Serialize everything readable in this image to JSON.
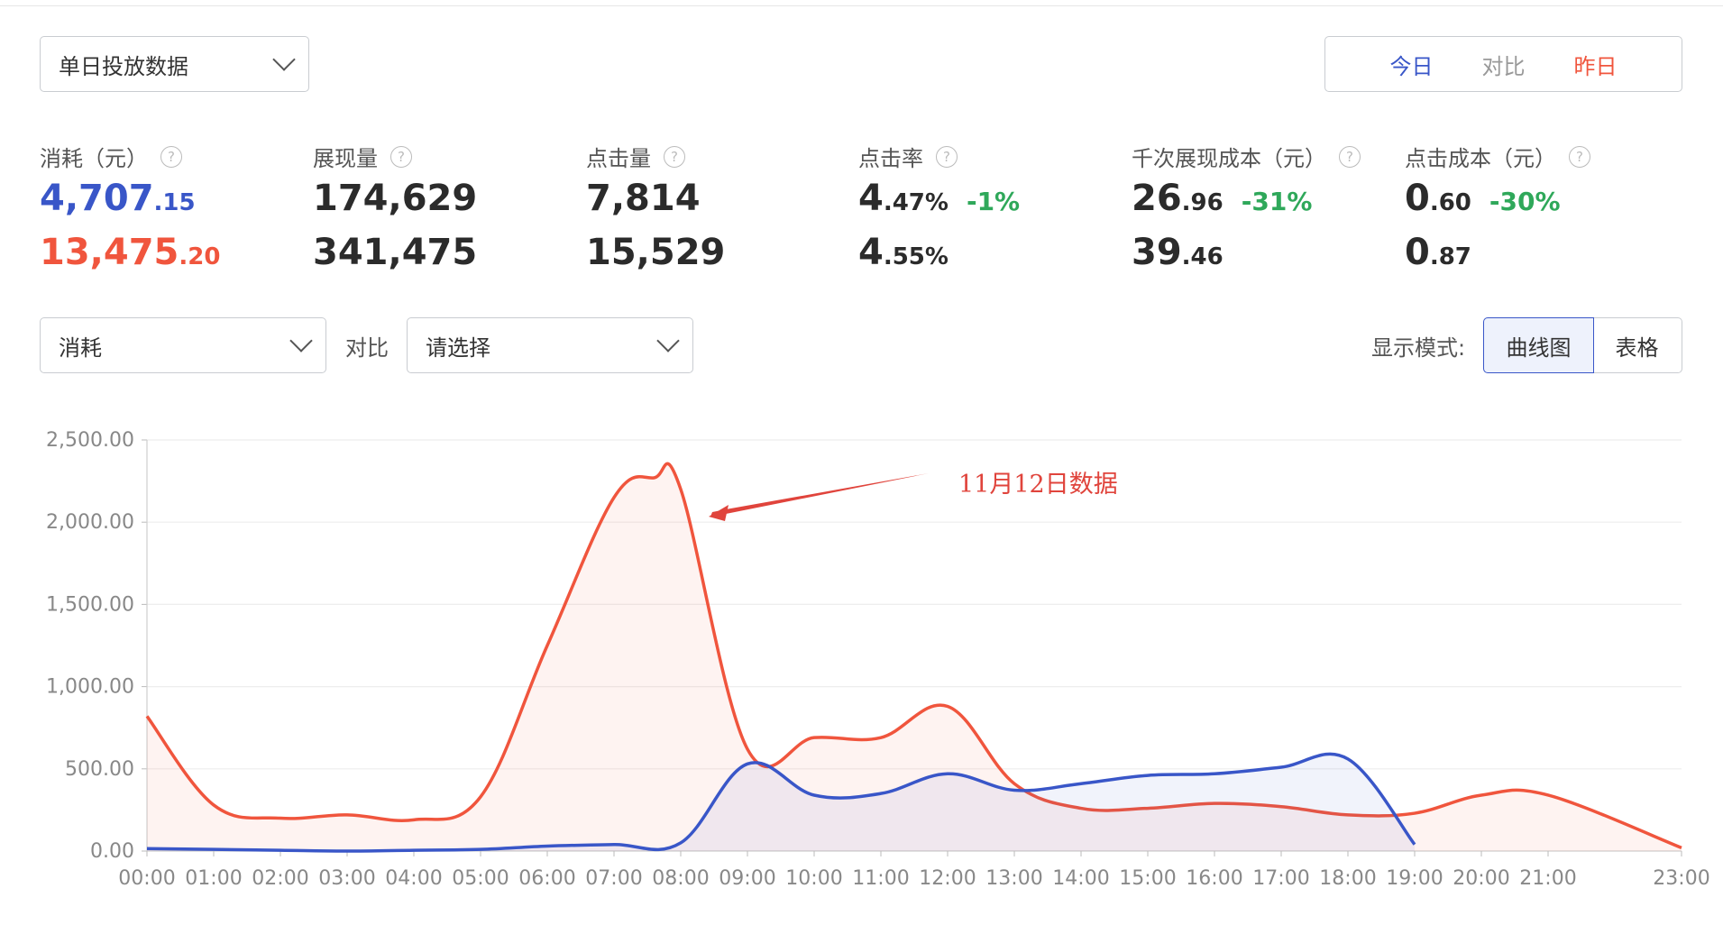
{
  "top_select": {
    "value": "单日投放数据"
  },
  "day_toggle": {
    "today": "今日",
    "compare": "对比",
    "yesterday": "昨日"
  },
  "metrics": [
    {
      "label": "消耗（元）",
      "help": "?",
      "today_int": "4,707",
      "today_dec": ".15",
      "yest_int": "13,475",
      "yest_dec": ".20",
      "delta": ""
    },
    {
      "label": "展现量",
      "help": "?",
      "today_int": "174,629",
      "today_dec": "",
      "yest_int": "341,475",
      "yest_dec": "",
      "delta": ""
    },
    {
      "label": "点击量",
      "help": "?",
      "today_int": "7,814",
      "today_dec": "",
      "yest_int": "15,529",
      "yest_dec": "",
      "delta": ""
    },
    {
      "label": "点击率",
      "help": "?",
      "today_int": "4",
      "today_dec": ".47%",
      "yest_int": "4",
      "yest_dec": ".55%",
      "delta": "-1%"
    },
    {
      "label": "千次展现成本（元）",
      "help": "?",
      "today_int": "26",
      "today_dec": ".96",
      "yest_int": "39",
      "yest_dec": ".46",
      "delta": "-31%"
    },
    {
      "label": "点击成本（元）",
      "help": "?",
      "today_int": "0",
      "today_dec": ".60",
      "yest_int": "0",
      "yest_dec": ".87",
      "delta": "-30%"
    }
  ],
  "filters": {
    "metric_select": "消耗",
    "compare_label": "对比",
    "compare_select_placeholder": "请选择",
    "display_mode_label": "显示模式:",
    "mode_curve": "曲线图",
    "mode_table": "表格"
  },
  "colors": {
    "today": "#3956c8",
    "yesterday": "#f0553d",
    "delta_down": "#2fa85a"
  },
  "chart_data": {
    "type": "line",
    "x": [
      "00:00",
      "01:00",
      "02:00",
      "03:00",
      "04:00",
      "05:00",
      "06:00",
      "07:00",
      "08:00",
      "09:00",
      "10:00",
      "11:00",
      "12:00",
      "13:00",
      "14:00",
      "15:00",
      "16:00",
      "17:00",
      "18:00",
      "19:00",
      "20:00",
      "21:00",
      "23:00"
    ],
    "x_hours": [
      0,
      1,
      2,
      3,
      4,
      5,
      6,
      7,
      8,
      9,
      10,
      11,
      12,
      13,
      14,
      15,
      16,
      17,
      18,
      19,
      20,
      21,
      23
    ],
    "y_ticks": [
      "0.00",
      "500.00",
      "1,000.00",
      "1,500.00",
      "2,000.00",
      "2,500.00"
    ],
    "ylim": [
      0,
      2500
    ],
    "grid": true,
    "series": [
      {
        "color": "#f0553d",
        "x": [
          0,
          1,
          2,
          3,
          4,
          5,
          6,
          7,
          7.6,
          8,
          9,
          10,
          11,
          12,
          13,
          14,
          15,
          16,
          17,
          18,
          19,
          20,
          21,
          23
        ],
        "values": [
          820,
          280,
          200,
          220,
          190,
          330,
          1250,
          2150,
          2270,
          2200,
          620,
          690,
          690,
          880,
          410,
          260,
          260,
          290,
          270,
          220,
          230,
          340,
          340,
          20
        ]
      },
      {
        "color": "#3956c8",
        "x": [
          0,
          1,
          2,
          3,
          4,
          5,
          6,
          7,
          8,
          9,
          10,
          11,
          12,
          13,
          14,
          15,
          16,
          17,
          18,
          19
        ],
        "values": [
          15,
          10,
          5,
          0,
          5,
          10,
          30,
          40,
          50,
          530,
          340,
          350,
          470,
          370,
          410,
          460,
          470,
          510,
          560,
          40
        ]
      }
    ],
    "annotation": {
      "text": "11月12日数据",
      "color": "#e0443c"
    }
  }
}
